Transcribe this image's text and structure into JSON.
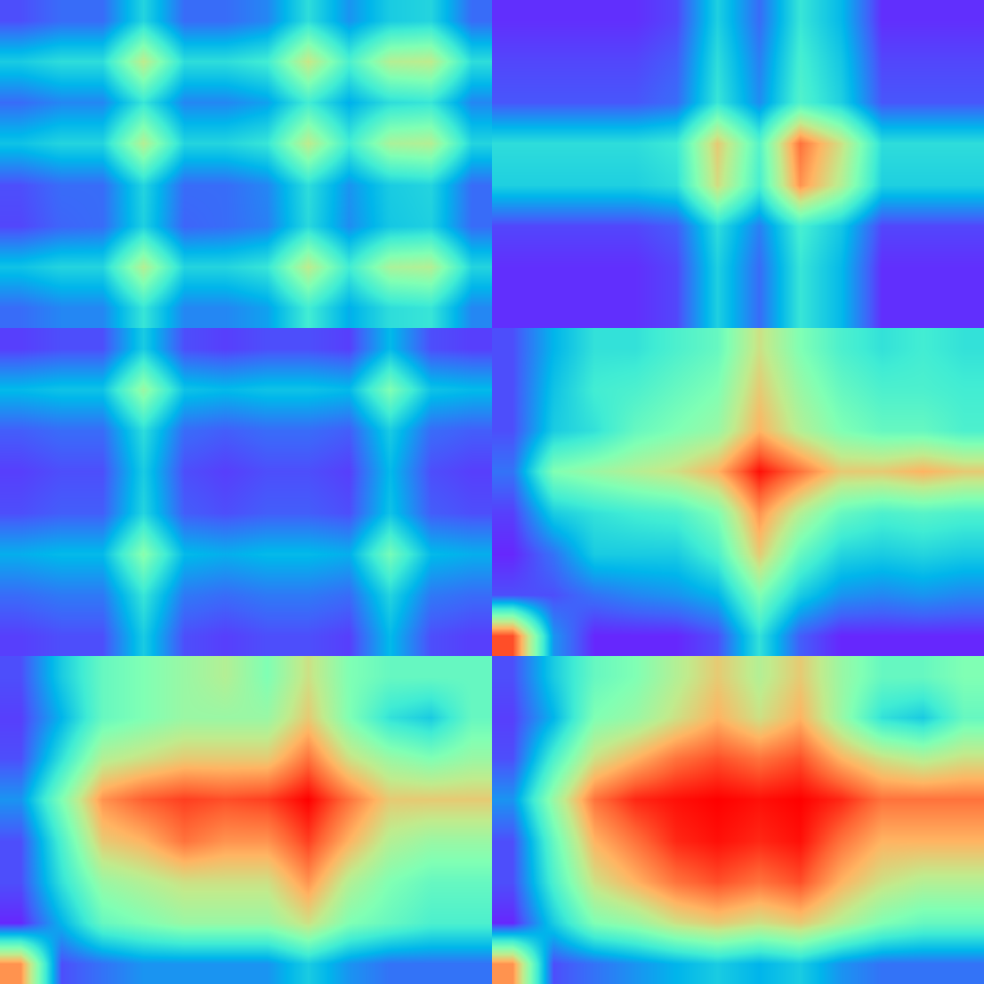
{
  "chart_data": [
    {
      "type": "heatmap",
      "color": "rainbow",
      "zlim": [
        0,
        1
      ],
      "tick_labels": false,
      "z": [
        [
          0.1,
          0.14,
          0.14,
          0.32,
          0.14,
          0.14,
          0.18,
          0.34,
          0.2,
          0.3,
          0.32,
          0.14
        ],
        [
          0.3,
          0.34,
          0.34,
          0.62,
          0.34,
          0.34,
          0.38,
          0.64,
          0.4,
          0.6,
          0.62,
          0.34
        ],
        [
          0.14,
          0.18,
          0.18,
          0.36,
          0.18,
          0.18,
          0.22,
          0.38,
          0.24,
          0.34,
          0.36,
          0.18
        ],
        [
          0.28,
          0.32,
          0.32,
          0.6,
          0.32,
          0.32,
          0.36,
          0.62,
          0.38,
          0.58,
          0.6,
          0.32
        ],
        [
          0.1,
          0.14,
          0.14,
          0.32,
          0.14,
          0.14,
          0.18,
          0.34,
          0.2,
          0.3,
          0.32,
          0.14
        ],
        [
          0.09,
          0.13,
          0.14,
          0.31,
          0.13,
          0.14,
          0.17,
          0.33,
          0.19,
          0.29,
          0.31,
          0.14
        ],
        [
          0.28,
          0.32,
          0.32,
          0.6,
          0.32,
          0.32,
          0.36,
          0.62,
          0.38,
          0.58,
          0.6,
          0.32
        ],
        [
          0.14,
          0.18,
          0.18,
          0.36,
          0.18,
          0.18,
          0.22,
          0.38,
          0.24,
          0.34,
          0.36,
          0.18
        ]
      ]
    },
    {
      "type": "heatmap",
      "color": "rainbow",
      "zlim": [
        0,
        1
      ],
      "tick_labels": false,
      "z": [
        [
          0.06,
          0.06,
          0.06,
          0.06,
          0.09,
          0.31,
          0.14,
          0.36,
          0.26,
          0.06,
          0.06,
          0.06
        ],
        [
          0.09,
          0.09,
          0.09,
          0.09,
          0.12,
          0.34,
          0.17,
          0.39,
          0.29,
          0.09,
          0.09,
          0.09
        ],
        [
          0.11,
          0.11,
          0.11,
          0.11,
          0.14,
          0.36,
          0.19,
          0.41,
          0.31,
          0.11,
          0.11,
          0.11
        ],
        [
          0.34,
          0.34,
          0.34,
          0.34,
          0.37,
          0.7,
          0.42,
          0.85,
          0.65,
          0.34,
          0.34,
          0.34
        ],
        [
          0.31,
          0.31,
          0.31,
          0.31,
          0.34,
          0.66,
          0.39,
          0.8,
          0.6,
          0.31,
          0.31,
          0.31
        ],
        [
          0.09,
          0.09,
          0.09,
          0.09,
          0.12,
          0.34,
          0.17,
          0.39,
          0.29,
          0.09,
          0.09,
          0.09
        ],
        [
          0.06,
          0.06,
          0.06,
          0.06,
          0.09,
          0.31,
          0.14,
          0.36,
          0.26,
          0.06,
          0.06,
          0.06
        ],
        [
          0.06,
          0.06,
          0.06,
          0.06,
          0.09,
          0.31,
          0.14,
          0.36,
          0.26,
          0.06,
          0.06,
          0.06
        ]
      ]
    },
    {
      "type": "heatmap",
      "color": "rainbow",
      "zlim": [
        0,
        1
      ],
      "tick_labels": false,
      "z": [
        [
          0.08,
          0.1,
          0.1,
          0.3,
          0.1,
          0.08,
          0.1,
          0.1,
          0.08,
          0.26,
          0.1,
          0.08
        ],
        [
          0.26,
          0.28,
          0.28,
          0.55,
          0.28,
          0.26,
          0.28,
          0.28,
          0.26,
          0.5,
          0.28,
          0.26
        ],
        [
          0.12,
          0.14,
          0.14,
          0.34,
          0.14,
          0.12,
          0.14,
          0.14,
          0.12,
          0.3,
          0.14,
          0.12
        ],
        [
          0.08,
          0.1,
          0.1,
          0.3,
          0.1,
          0.08,
          0.1,
          0.1,
          0.08,
          0.26,
          0.1,
          0.08
        ],
        [
          0.1,
          0.12,
          0.12,
          0.32,
          0.12,
          0.1,
          0.12,
          0.12,
          0.1,
          0.28,
          0.12,
          0.1
        ],
        [
          0.24,
          0.26,
          0.26,
          0.52,
          0.26,
          0.24,
          0.26,
          0.26,
          0.24,
          0.48,
          0.26,
          0.24
        ],
        [
          0.14,
          0.16,
          0.16,
          0.36,
          0.16,
          0.14,
          0.16,
          0.16,
          0.14,
          0.32,
          0.16,
          0.14
        ],
        [
          0.08,
          0.1,
          0.1,
          0.3,
          0.1,
          0.08,
          0.1,
          0.1,
          0.08,
          0.26,
          0.1,
          0.08
        ]
      ]
    },
    {
      "type": "heatmap",
      "color": "rainbow",
      "zlim": [
        0,
        1
      ],
      "tick_labels": false,
      "z": [
        [
          0.1,
          0.25,
          0.35,
          0.35,
          0.4,
          0.45,
          0.65,
          0.5,
          0.4,
          0.35,
          0.38,
          0.35
        ],
        [
          0.1,
          0.28,
          0.38,
          0.4,
          0.45,
          0.5,
          0.7,
          0.55,
          0.45,
          0.4,
          0.4,
          0.38
        ],
        [
          0.1,
          0.3,
          0.35,
          0.45,
          0.5,
          0.55,
          0.75,
          0.6,
          0.5,
          0.45,
          0.45,
          0.4
        ],
        [
          0.15,
          0.5,
          0.55,
          0.6,
          0.65,
          0.75,
          0.98,
          0.85,
          0.7,
          0.7,
          0.75,
          0.7
        ],
        [
          0.08,
          0.3,
          0.35,
          0.38,
          0.4,
          0.5,
          0.8,
          0.6,
          0.45,
          0.4,
          0.42,
          0.4
        ],
        [
          0.05,
          0.15,
          0.3,
          0.3,
          0.3,
          0.4,
          0.7,
          0.45,
          0.32,
          0.3,
          0.32,
          0.3
        ],
        [
          0.1,
          0.1,
          0.15,
          0.18,
          0.2,
          0.25,
          0.5,
          0.3,
          0.2,
          0.18,
          0.2,
          0.18
        ],
        [
          0.9,
          0.2,
          0.05,
          0.05,
          0.05,
          0.1,
          0.35,
          0.12,
          0.05,
          0.05,
          0.05,
          0.05
        ]
      ]
    },
    {
      "type": "heatmap",
      "color": "rainbow",
      "zlim": [
        0,
        1
      ],
      "tick_labels": false,
      "z": [
        [
          0.1,
          0.3,
          0.45,
          0.5,
          0.55,
          0.6,
          0.5,
          0.65,
          0.5,
          0.45,
          0.45,
          0.45
        ],
        [
          0.08,
          0.25,
          0.45,
          0.5,
          0.55,
          0.55,
          0.55,
          0.7,
          0.5,
          0.35,
          0.3,
          0.45
        ],
        [
          0.1,
          0.35,
          0.6,
          0.65,
          0.7,
          0.7,
          0.7,
          0.85,
          0.65,
          0.55,
          0.5,
          0.55
        ],
        [
          0.2,
          0.5,
          0.8,
          0.88,
          0.92,
          0.9,
          0.92,
          1.0,
          0.85,
          0.7,
          0.7,
          0.7
        ],
        [
          0.1,
          0.4,
          0.7,
          0.75,
          0.85,
          0.8,
          0.8,
          0.92,
          0.75,
          0.6,
          0.55,
          0.55
        ],
        [
          0.1,
          0.35,
          0.55,
          0.6,
          0.65,
          0.65,
          0.65,
          0.8,
          0.6,
          0.5,
          0.45,
          0.45
        ],
        [
          0.05,
          0.25,
          0.45,
          0.5,
          0.55,
          0.55,
          0.55,
          0.65,
          0.5,
          0.45,
          0.4,
          0.4
        ],
        [
          0.8,
          0.1,
          0.15,
          0.2,
          0.2,
          0.2,
          0.2,
          0.3,
          0.2,
          0.15,
          0.15,
          0.15
        ]
      ]
    },
    {
      "type": "heatmap",
      "color": "rainbow",
      "zlim": [
        0,
        1
      ],
      "tick_labels": false,
      "z": [
        [
          0.1,
          0.3,
          0.45,
          0.5,
          0.6,
          0.7,
          0.6,
          0.7,
          0.55,
          0.45,
          0.45,
          0.5
        ],
        [
          0.08,
          0.25,
          0.5,
          0.55,
          0.65,
          0.75,
          0.65,
          0.75,
          0.55,
          0.35,
          0.3,
          0.45
        ],
        [
          0.1,
          0.4,
          0.65,
          0.75,
          0.85,
          0.9,
          0.85,
          0.9,
          0.75,
          0.65,
          0.6,
          0.65
        ],
        [
          0.2,
          0.55,
          0.85,
          0.95,
          0.98,
          1.0,
          0.98,
          1.0,
          0.95,
          0.85,
          0.85,
          0.85
        ],
        [
          0.1,
          0.45,
          0.75,
          0.85,
          0.95,
          0.98,
          0.95,
          0.98,
          0.85,
          0.75,
          0.75,
          0.75
        ],
        [
          0.1,
          0.4,
          0.65,
          0.75,
          0.85,
          0.9,
          0.85,
          0.9,
          0.75,
          0.65,
          0.6,
          0.6
        ],
        [
          0.05,
          0.3,
          0.5,
          0.55,
          0.65,
          0.7,
          0.65,
          0.7,
          0.6,
          0.5,
          0.45,
          0.45
        ],
        [
          0.8,
          0.1,
          0.15,
          0.2,
          0.25,
          0.3,
          0.25,
          0.3,
          0.2,
          0.15,
          0.15,
          0.15
        ]
      ]
    }
  ]
}
